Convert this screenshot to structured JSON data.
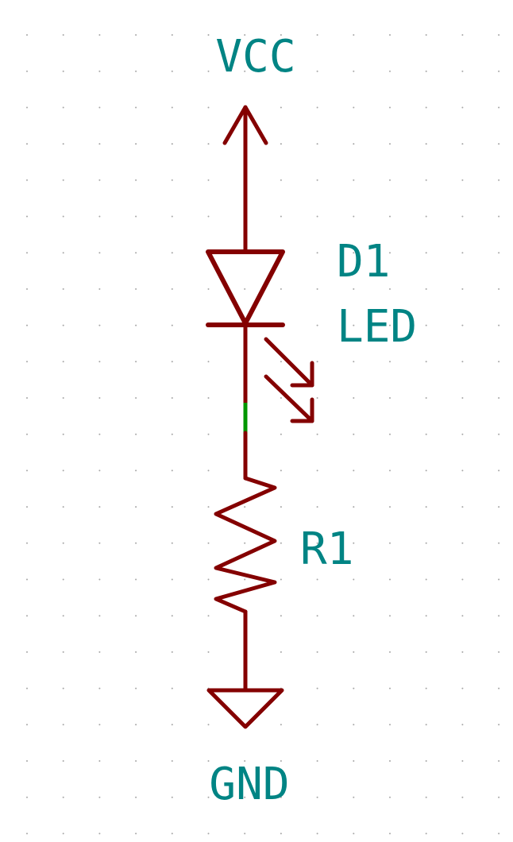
{
  "schematic": {
    "colors": {
      "background": "#ffffff",
      "grid_dot": "#a6a6a6",
      "symbol": "#840000",
      "wire": "#840000",
      "wire_highlight": "#009600",
      "text": "#008484"
    },
    "labels": {
      "vcc": "VCC",
      "gnd": "GND",
      "led_ref": "D1",
      "led_value": "LED",
      "resistor_ref": "R1"
    },
    "components": [
      {
        "ref": "VCC",
        "kind": "power-symbol-vcc"
      },
      {
        "ref": "D1",
        "kind": "led",
        "value": "LED"
      },
      {
        "ref": "R1",
        "kind": "resistor"
      },
      {
        "ref": "GND",
        "kind": "ground-symbol"
      }
    ]
  }
}
